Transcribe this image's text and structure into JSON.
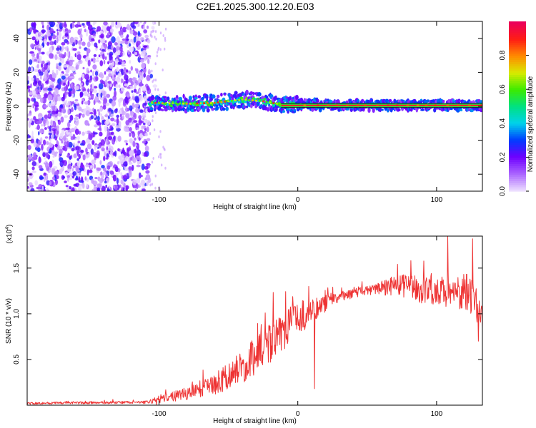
{
  "chart_data": [
    {
      "type": "heatmap",
      "title": "C2E1.2025.300.12.20.E03",
      "xlabel": "Height of straight line (km)",
      "ylabel": "Frequency (Hz)",
      "xlim": [
        -195,
        133
      ],
      "ylim": [
        -50,
        50
      ],
      "x_ticks": [
        -100,
        0,
        100
      ],
      "x_tick_labels": [
        "-100",
        "0",
        "100"
      ],
      "y_ticks": [
        -40,
        -20,
        0,
        20,
        40
      ],
      "y_tick_labels": [
        "-40",
        "-20",
        "0",
        "20",
        "40"
      ],
      "noise_region_x": [
        -195,
        -107
      ],
      "ridge_frequency_hz": 0,
      "ridge_track": [
        {
          "x": -105,
          "y": 2.0
        },
        {
          "x": -80,
          "y": 1.5
        },
        {
          "x": -60,
          "y": 2.0
        },
        {
          "x": -40,
          "y": 4.0
        },
        {
          "x": -25,
          "y": 3.0
        },
        {
          "x": -12,
          "y": 1.0
        },
        {
          "x": 0,
          "y": 1.0
        },
        {
          "x": 60,
          "y": 0.5
        },
        {
          "x": 133,
          "y": 0.5
        }
      ],
      "colorbar": {
        "label": "Normalized spectral amplitude",
        "range": [
          0,
          1
        ],
        "ticks": [
          0.0,
          0.2,
          0.4,
          0.6,
          0.8
        ],
        "tick_labels": [
          "0.0",
          "0.2",
          "0.4",
          "0.6",
          "0.8"
        ]
      }
    },
    {
      "type": "line",
      "xlabel": "Height of straight line (km)",
      "ylabel": "SNR (10 * v/v)",
      "scale_label": "(x10",
      "scale_exponent": "4",
      "scale_close": ")",
      "xlim": [
        -195,
        133
      ],
      "ylim": [
        0,
        1.85
      ],
      "x_ticks": [
        -100,
        0,
        100
      ],
      "x_tick_labels": [
        "-100",
        "0",
        "100"
      ],
      "y_ticks": [
        0.5,
        1.0,
        1.5
      ],
      "y_tick_labels": [
        "0.5",
        "1.0",
        "1.5"
      ],
      "line_color": "#ee3333",
      "envelope": [
        {
          "x": -195,
          "mean": 0.02,
          "noise": 0.012
        },
        {
          "x": -110,
          "mean": 0.03,
          "noise": 0.015
        },
        {
          "x": -100,
          "mean": 0.06,
          "noise": 0.04
        },
        {
          "x": -80,
          "mean": 0.12,
          "noise": 0.07
        },
        {
          "x": -60,
          "mean": 0.22,
          "noise": 0.12
        },
        {
          "x": -40,
          "mean": 0.4,
          "noise": 0.18
        },
        {
          "x": -25,
          "mean": 0.58,
          "noise": 0.22
        },
        {
          "x": -10,
          "mean": 0.8,
          "noise": 0.22
        },
        {
          "x": 0,
          "mean": 0.92,
          "noise": 0.18
        },
        {
          "x": 10,
          "mean": 1.02,
          "noise": 0.14
        },
        {
          "x": 25,
          "mean": 1.15,
          "noise": 0.07
        },
        {
          "x": 40,
          "mean": 1.22,
          "noise": 0.05
        },
        {
          "x": 55,
          "mean": 1.26,
          "noise": 0.05
        },
        {
          "x": 70,
          "mean": 1.3,
          "noise": 0.12
        },
        {
          "x": 90,
          "mean": 1.25,
          "noise": 0.15
        },
        {
          "x": 110,
          "mean": 1.22,
          "noise": 0.18
        },
        {
          "x": 125,
          "mean": 1.2,
          "noise": 0.22
        },
        {
          "x": 133,
          "mean": 0.95,
          "noise": 0.15
        }
      ],
      "spikes": [
        {
          "x": -102,
          "y": 0.005
        },
        {
          "x": 8,
          "y": 1.3
        },
        {
          "x": 12,
          "y": 0.18
        },
        {
          "x": 108,
          "y": 1.85
        },
        {
          "x": 126,
          "y": 1.82
        },
        {
          "x": 130,
          "y": 0.7
        }
      ]
    }
  ]
}
